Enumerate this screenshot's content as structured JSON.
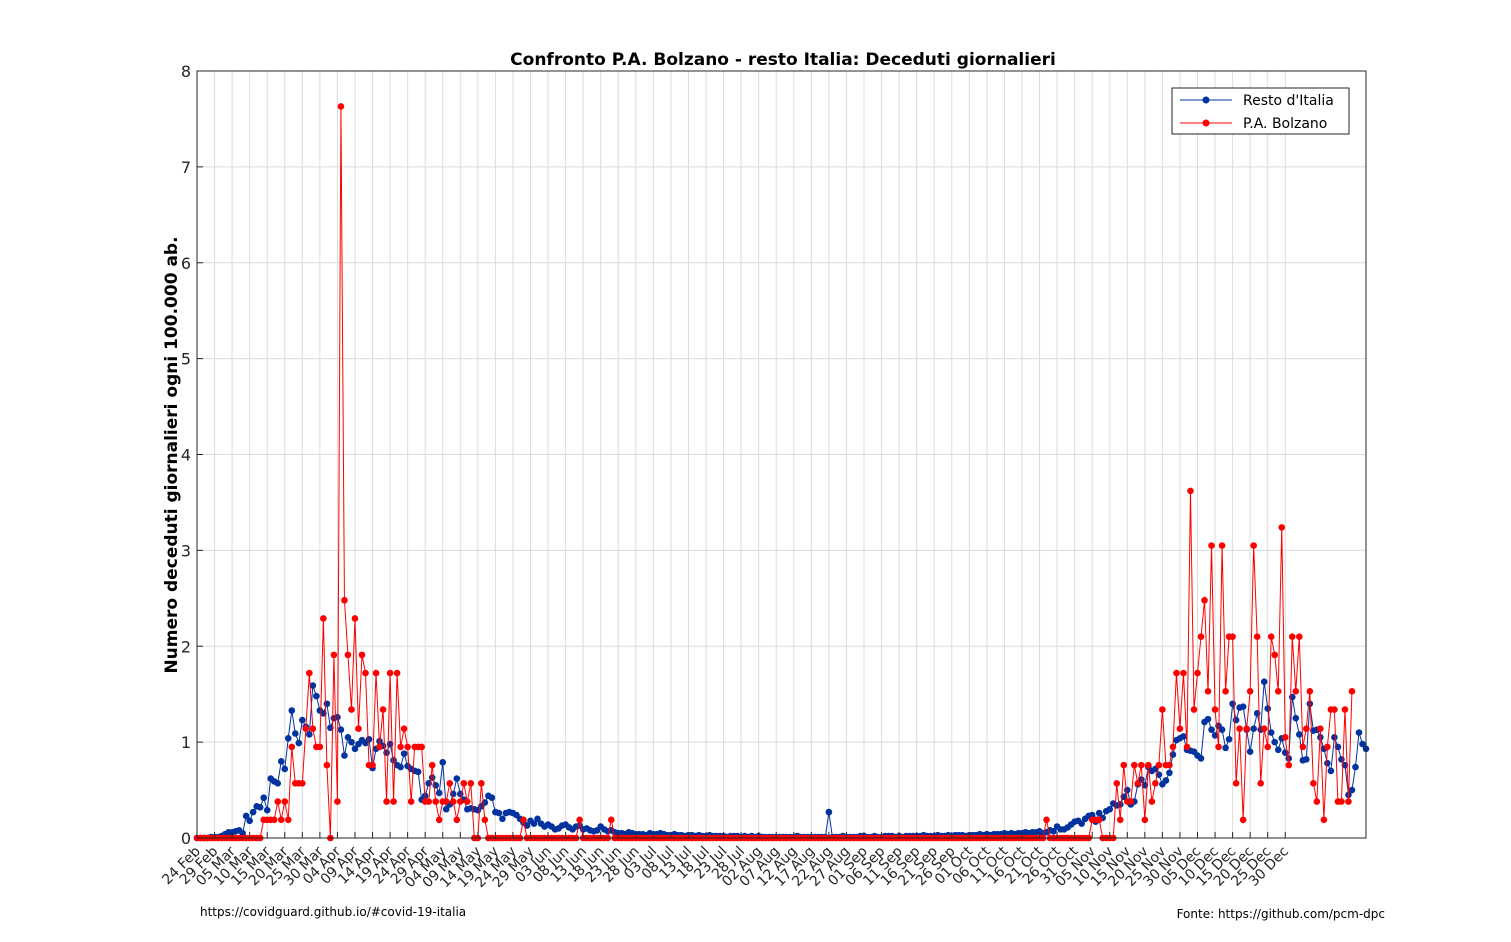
{
  "chart_data": {
    "type": "line",
    "title": "Confronto P.A. Bolzano - resto Italia: Deceduti giornalieri",
    "xlabel": "",
    "ylabel": "Numero deceduti giornalieri ogni 100.000 ab.",
    "ylim": [
      0,
      8
    ],
    "yticks": [
      0,
      1,
      2,
      3,
      4,
      5,
      6,
      7,
      8
    ],
    "grid": true,
    "legend_position": "top-right",
    "x_start": "24 Feb",
    "x_end": "30 Dec",
    "xtick_labels": [
      "24 Feb",
      "29 Feb",
      "05 Mar",
      "10 Mar",
      "15 Mar",
      "20 Mar",
      "25 Mar",
      "30 Mar",
      "04 Apr",
      "09 Apr",
      "14 Apr",
      "19 Apr",
      "24 Apr",
      "29 Apr",
      "04 May",
      "09 May",
      "14 May",
      "19 May",
      "24 May",
      "29 May",
      "03 Jun",
      "08 Jun",
      "13 Jun",
      "18 Jun",
      "23 Jun",
      "28 Jun",
      "03 Jul",
      "08 Jul",
      "13 Jul",
      "18 Jul",
      "23 Jul",
      "28 Jul",
      "02 Aug",
      "07 Aug",
      "12 Aug",
      "17 Aug",
      "22 Aug",
      "27 Aug",
      "01 Sep",
      "06 Sep",
      "11 Sep",
      "16 Sep",
      "21 Sep",
      "26 Sep",
      "01 Oct",
      "06 Oct",
      "11 Oct",
      "16 Oct",
      "21 Oct",
      "26 Oct",
      "31 Oct",
      "05 Nov",
      "10 Nov",
      "15 Nov",
      "20 Nov",
      "25 Nov",
      "30 Nov",
      "05 Dec",
      "10 Dec",
      "15 Dec",
      "20 Dec",
      "25 Dec",
      "30 Dec"
    ],
    "series": [
      {
        "name": "Resto d'Italia",
        "color": "#0033a0",
        "values": [
          0.0,
          0.0,
          0.0,
          0.0,
          0.01,
          0.01,
          0.01,
          0.02,
          0.04,
          0.06,
          0.06,
          0.07,
          0.08,
          0.05,
          0.23,
          0.18,
          0.27,
          0.33,
          0.32,
          0.42,
          0.29,
          0.62,
          0.59,
          0.57,
          0.8,
          0.72,
          1.04,
          1.33,
          1.09,
          0.99,
          1.23,
          1.16,
          1.08,
          1.59,
          1.48,
          1.33,
          1.3,
          1.4,
          1.15,
          1.25,
          1.26,
          1.13,
          0.86,
          1.05,
          1.0,
          0.93,
          0.98,
          1.02,
          0.99,
          1.03,
          0.73,
          0.93,
          1.01,
          0.96,
          0.89,
          0.98,
          0.81,
          0.76,
          0.74,
          0.88,
          0.75,
          0.72,
          0.7,
          0.69,
          0.4,
          0.44,
          0.57,
          0.63,
          0.55,
          0.47,
          0.79,
          0.3,
          0.35,
          0.46,
          0.62,
          0.46,
          0.4,
          0.3,
          0.31,
          0.3,
          0.29,
          0.33,
          0.37,
          0.44,
          0.42,
          0.27,
          0.26,
          0.2,
          0.26,
          0.27,
          0.26,
          0.24,
          0.2,
          0.16,
          0.13,
          0.18,
          0.15,
          0.2,
          0.15,
          0.12,
          0.14,
          0.12,
          0.09,
          0.1,
          0.13,
          0.14,
          0.11,
          0.09,
          0.12,
          0.13,
          0.09,
          0.1,
          0.08,
          0.07,
          0.08,
          0.12,
          0.09,
          0.07,
          0.08,
          0.06,
          0.05,
          0.05,
          0.04,
          0.06,
          0.05,
          0.04,
          0.04,
          0.04,
          0.03,
          0.05,
          0.04,
          0.04,
          0.05,
          0.04,
          0.03,
          0.03,
          0.04,
          0.03,
          0.03,
          0.02,
          0.03,
          0.03,
          0.02,
          0.03,
          0.02,
          0.02,
          0.03,
          0.02,
          0.02,
          0.02,
          0.02,
          0.01,
          0.02,
          0.02,
          0.02,
          0.01,
          0.02,
          0.01,
          0.02,
          0.01,
          0.02,
          0.01,
          0.01,
          0.01,
          0.01,
          0.01,
          0.01,
          0.01,
          0.01,
          0.01,
          0.01,
          0.02,
          0.01,
          0.01,
          0.01,
          0.01,
          0.01,
          0.01,
          0.01,
          0.01,
          0.27,
          0.01,
          0.01,
          0.01,
          0.02,
          0.01,
          0.01,
          0.01,
          0.01,
          0.02,
          0.02,
          0.01,
          0.01,
          0.02,
          0.01,
          0.01,
          0.02,
          0.02,
          0.02,
          0.01,
          0.02,
          0.01,
          0.02,
          0.02,
          0.02,
          0.02,
          0.02,
          0.03,
          0.02,
          0.02,
          0.02,
          0.03,
          0.02,
          0.02,
          0.03,
          0.02,
          0.03,
          0.03,
          0.03,
          0.02,
          0.03,
          0.03,
          0.03,
          0.04,
          0.03,
          0.04,
          0.03,
          0.04,
          0.04,
          0.04,
          0.05,
          0.04,
          0.05,
          0.04,
          0.05,
          0.05,
          0.06,
          0.05,
          0.06,
          0.06,
          0.07,
          0.05,
          0.06,
          0.08,
          0.07,
          0.12,
          0.09,
          0.09,
          0.11,
          0.14,
          0.17,
          0.18,
          0.15,
          0.2,
          0.23,
          0.24,
          0.17,
          0.26,
          0.21,
          0.28,
          0.3,
          0.36,
          0.34,
          0.35,
          0.43,
          0.5,
          0.35,
          0.38,
          0.56,
          0.61,
          0.55,
          0.74,
          0.7,
          0.72,
          0.66,
          0.56,
          0.6,
          0.68,
          0.87,
          1.02,
          1.04,
          1.06,
          0.92,
          0.91,
          0.9,
          0.86,
          0.83,
          1.21,
          1.24,
          1.13,
          1.07,
          1.17,
          1.13,
          0.94,
          1.03,
          1.4,
          1.23,
          1.36,
          1.37,
          1.13,
          0.9,
          1.14,
          1.3,
          1.13,
          1.63,
          1.35,
          1.1,
          1.0,
          0.92,
          1.04,
          0.89,
          0.83,
          1.47,
          1.25,
          1.08,
          0.81,
          0.82,
          1.4,
          1.12,
          1.13,
          1.05,
          0.93,
          0.78,
          0.7,
          1.05,
          0.95,
          0.82,
          0.76,
          0.45,
          0.5,
          0.74,
          1.1,
          0.98,
          0.93
        ]
      },
      {
        "name": "P.A. Bolzano",
        "color": "#ff0000",
        "values": [
          0.0,
          0.0,
          0.0,
          0.0,
          0.0,
          0.0,
          0.0,
          0.0,
          0.0,
          0.0,
          0.0,
          0.0,
          0.0,
          0.0,
          0.0,
          0.0,
          0.0,
          0.0,
          0.0,
          0.19,
          0.19,
          0.19,
          0.19,
          0.38,
          0.19,
          0.38,
          0.19,
          0.95,
          0.57,
          0.57,
          0.57,
          1.14,
          1.72,
          1.14,
          0.95,
          0.95,
          2.29,
          0.76,
          0.0,
          1.91,
          0.38,
          7.63,
          2.48,
          1.91,
          1.34,
          2.29,
          1.14,
          1.91,
          1.72,
          0.76,
          0.76,
          1.72,
          0.95,
          1.34,
          0.38,
          1.72,
          0.38,
          1.72,
          0.95,
          1.14,
          0.95,
          0.38,
          0.95,
          0.95,
          0.95,
          0.38,
          0.38,
          0.76,
          0.38,
          0.19,
          0.38,
          0.38,
          0.57,
          0.38,
          0.19,
          0.38,
          0.57,
          0.38,
          0.57,
          0.0,
          0.0,
          0.57,
          0.19,
          0.0,
          0.0,
          0.0,
          0.0,
          0.0,
          0.0,
          0.0,
          0.0,
          0.0,
          0.0,
          0.19,
          0.0,
          0.0,
          0.0,
          0.0,
          0.0,
          0.0,
          0.0,
          0.0,
          0.0,
          0.0,
          0.0,
          0.0,
          0.0,
          0.0,
          0.0,
          0.19,
          0.0,
          0.0,
          0.0,
          0.0,
          0.0,
          0.0,
          0.0,
          0.0,
          0.19,
          0.0,
          0.0,
          0.0,
          0.0,
          0.0,
          0.0,
          0.0,
          0.0,
          0.0,
          0.0,
          0.0,
          0.0,
          0.0,
          0.0,
          0.0,
          0.0,
          0.0,
          0.0,
          0.0,
          0.0,
          0.0,
          0.0,
          0.0,
          0.0,
          0.0,
          0.0,
          0.0,
          0.0,
          0.0,
          0.0,
          0.0,
          0.0,
          0.0,
          0.0,
          0.0,
          0.0,
          0.0,
          0.0,
          0.0,
          0.0,
          0.0,
          0.0,
          0.0,
          0.0,
          0.0,
          0.0,
          0.0,
          0.0,
          0.0,
          0.0,
          0.0,
          0.0,
          0.0,
          0.0,
          0.0,
          0.0,
          0.0,
          0.0,
          0.0,
          0.0,
          0.0,
          0.0,
          0.0,
          0.0,
          0.0,
          0.0,
          0.0,
          0.0,
          0.0,
          0.0,
          0.0,
          0.0,
          0.0,
          0.0,
          0.0,
          0.0,
          0.0,
          0.0,
          0.0,
          0.0,
          0.0,
          0.0,
          0.0,
          0.0,
          0.0,
          0.0,
          0.0,
          0.0,
          0.0,
          0.0,
          0.0,
          0.0,
          0.0,
          0.0,
          0.0,
          0.0,
          0.0,
          0.0,
          0.0,
          0.0,
          0.0,
          0.0,
          0.0,
          0.0,
          0.0,
          0.0,
          0.0,
          0.0,
          0.0,
          0.0,
          0.0,
          0.0,
          0.0,
          0.0,
          0.0,
          0.0,
          0.0,
          0.0,
          0.0,
          0.0,
          0.0,
          0.0,
          0.0,
          0.19,
          0.0,
          0.0,
          0.0,
          0.0,
          0.0,
          0.0,
          0.0,
          0.0,
          0.0,
          0.0,
          0.0,
          0.0,
          0.19,
          0.19,
          0.19,
          0.0,
          0.0,
          0.0,
          0.0,
          0.57,
          0.19,
          0.76,
          0.38,
          0.38,
          0.76,
          0.57,
          0.76,
          0.19,
          0.76,
          0.38,
          0.57,
          0.76,
          1.34,
          0.76,
          0.76,
          0.95,
          1.72,
          1.14,
          1.72,
          0.95,
          3.62,
          1.34,
          1.72,
          2.1,
          2.48,
          1.53,
          3.05,
          1.34,
          0.95,
          3.05,
          1.53,
          2.1,
          2.1,
          0.57,
          1.14,
          0.19,
          1.14,
          1.53,
          3.05,
          2.1,
          0.57,
          1.14,
          0.95,
          2.1,
          1.91,
          1.53,
          3.24,
          1.05,
          0.76,
          2.1,
          1.53,
          2.1,
          0.95,
          1.14,
          1.53,
          0.57,
          0.38,
          1.14,
          0.19,
          0.95,
          1.34,
          1.34,
          0.38,
          0.38,
          1.34,
          0.38,
          1.53
        ]
      }
    ]
  },
  "footer": {
    "left": "https://covidguard.github.io/#covid-19-italia",
    "right": "Fonte: https://github.com/pcm-dpc"
  }
}
